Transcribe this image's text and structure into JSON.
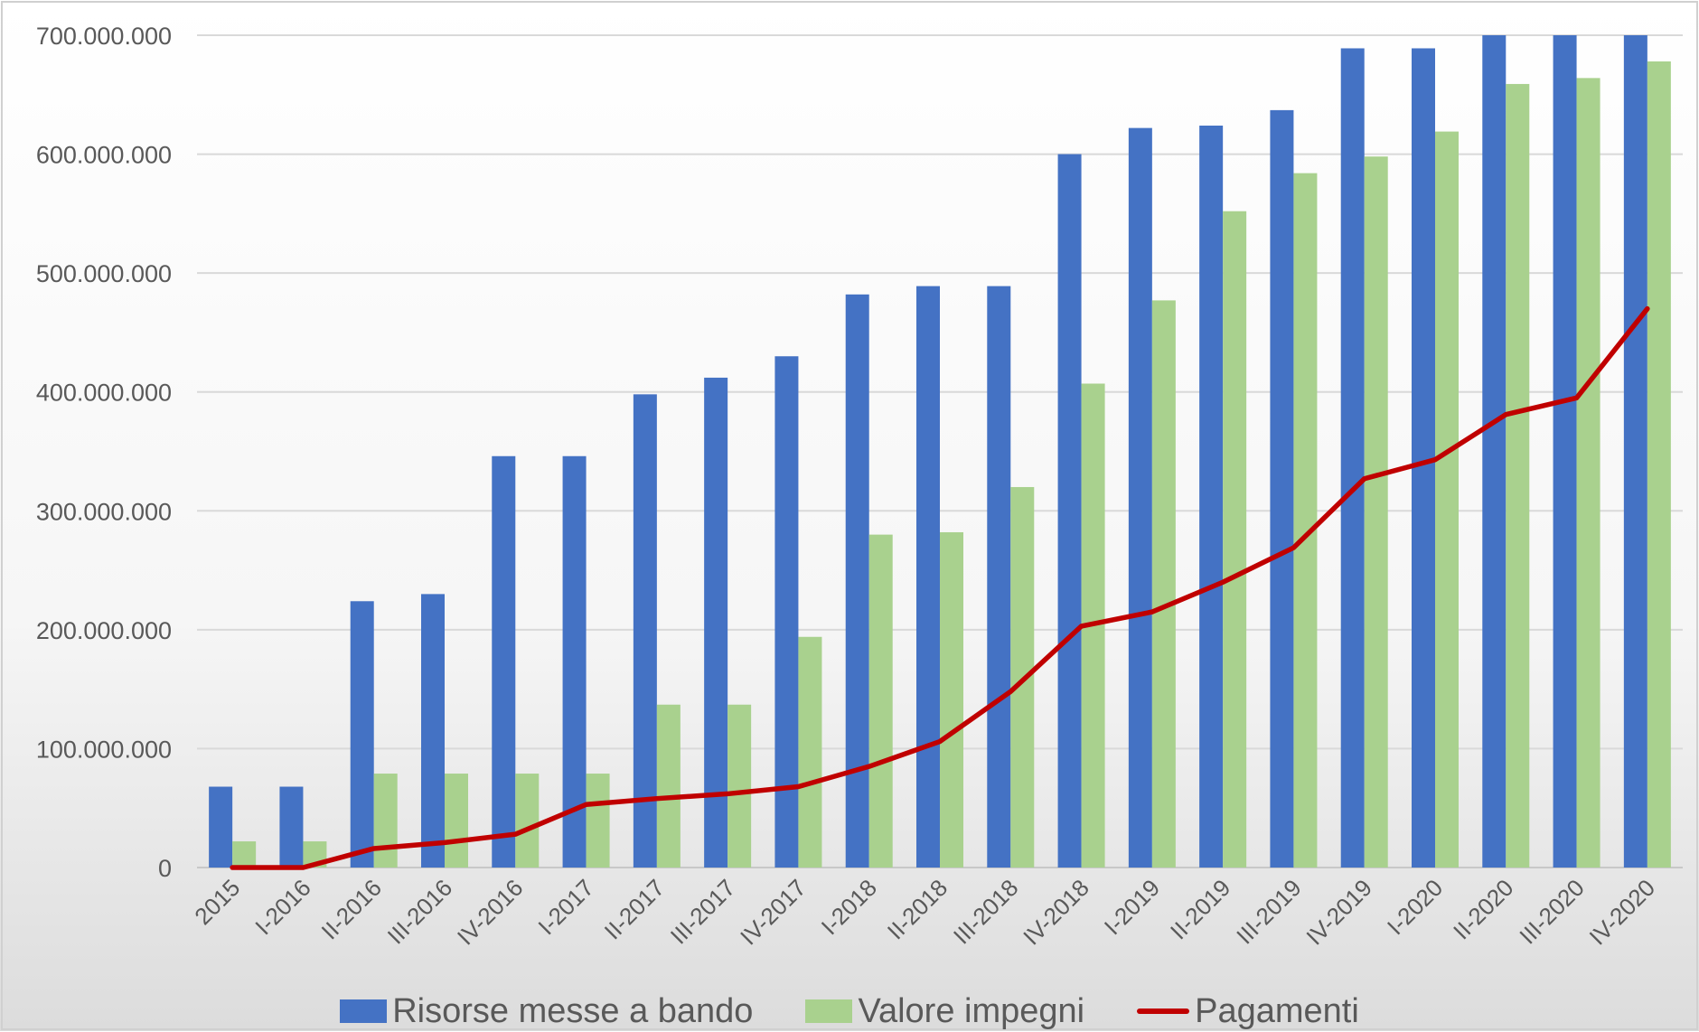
{
  "chart_data": {
    "type": "bar",
    "title": "",
    "xlabel": "",
    "ylabel": "",
    "ylim": [
      0,
      700000000
    ],
    "yticks": [
      "0",
      "100.000.000",
      "200.000.000",
      "300.000.000",
      "400.000.000",
      "500.000.000",
      "600.000.000",
      "700.000.000"
    ],
    "ytick_values": [
      0,
      100000000,
      200000000,
      300000000,
      400000000,
      500000000,
      600000000,
      700000000
    ],
    "grid": true,
    "legend_position": "bottom",
    "categories": [
      "2015",
      "I-2016",
      "II-2016",
      "III-2016",
      "IV-2016",
      "I-2017",
      "II-2017",
      "III-2017",
      "IV-2017",
      "I-2018",
      "II-2018",
      "III-2018",
      "IV-2018",
      "I-2019",
      "II-2019",
      "III-2019",
      "IV-2019",
      "I-2020",
      "II-2020",
      "III-2020",
      "IV-2020"
    ],
    "series": [
      {
        "name": "Risorse messe a bando",
        "kind": "bar",
        "color": "#4472C4",
        "values": [
          68000000,
          68000000,
          224000000,
          230000000,
          346000000,
          346000000,
          398000000,
          412000000,
          430000000,
          482000000,
          489000000,
          489000000,
          600000000,
          622000000,
          624000000,
          637000000,
          689000000,
          689000000,
          700000000,
          700000000,
          700000000
        ]
      },
      {
        "name": "Valore impegni",
        "kind": "bar",
        "color": "#A9D18E",
        "values": [
          22000000,
          22000000,
          79000000,
          79000000,
          79000000,
          79000000,
          137000000,
          137000000,
          194000000,
          280000000,
          282000000,
          320000000,
          407000000,
          477000000,
          552000000,
          584000000,
          598000000,
          619000000,
          659000000,
          664000000,
          678000000
        ]
      },
      {
        "name": "Pagamenti",
        "kind": "line",
        "color": "#C00000",
        "values": [
          0,
          0,
          16000000,
          21000000,
          28000000,
          53000000,
          58000000,
          62000000,
          68000000,
          85000000,
          106000000,
          148000000,
          203000000,
          215000000,
          240000000,
          269000000,
          327000000,
          343000000,
          381000000,
          395000000,
          470000000
        ]
      }
    ]
  }
}
